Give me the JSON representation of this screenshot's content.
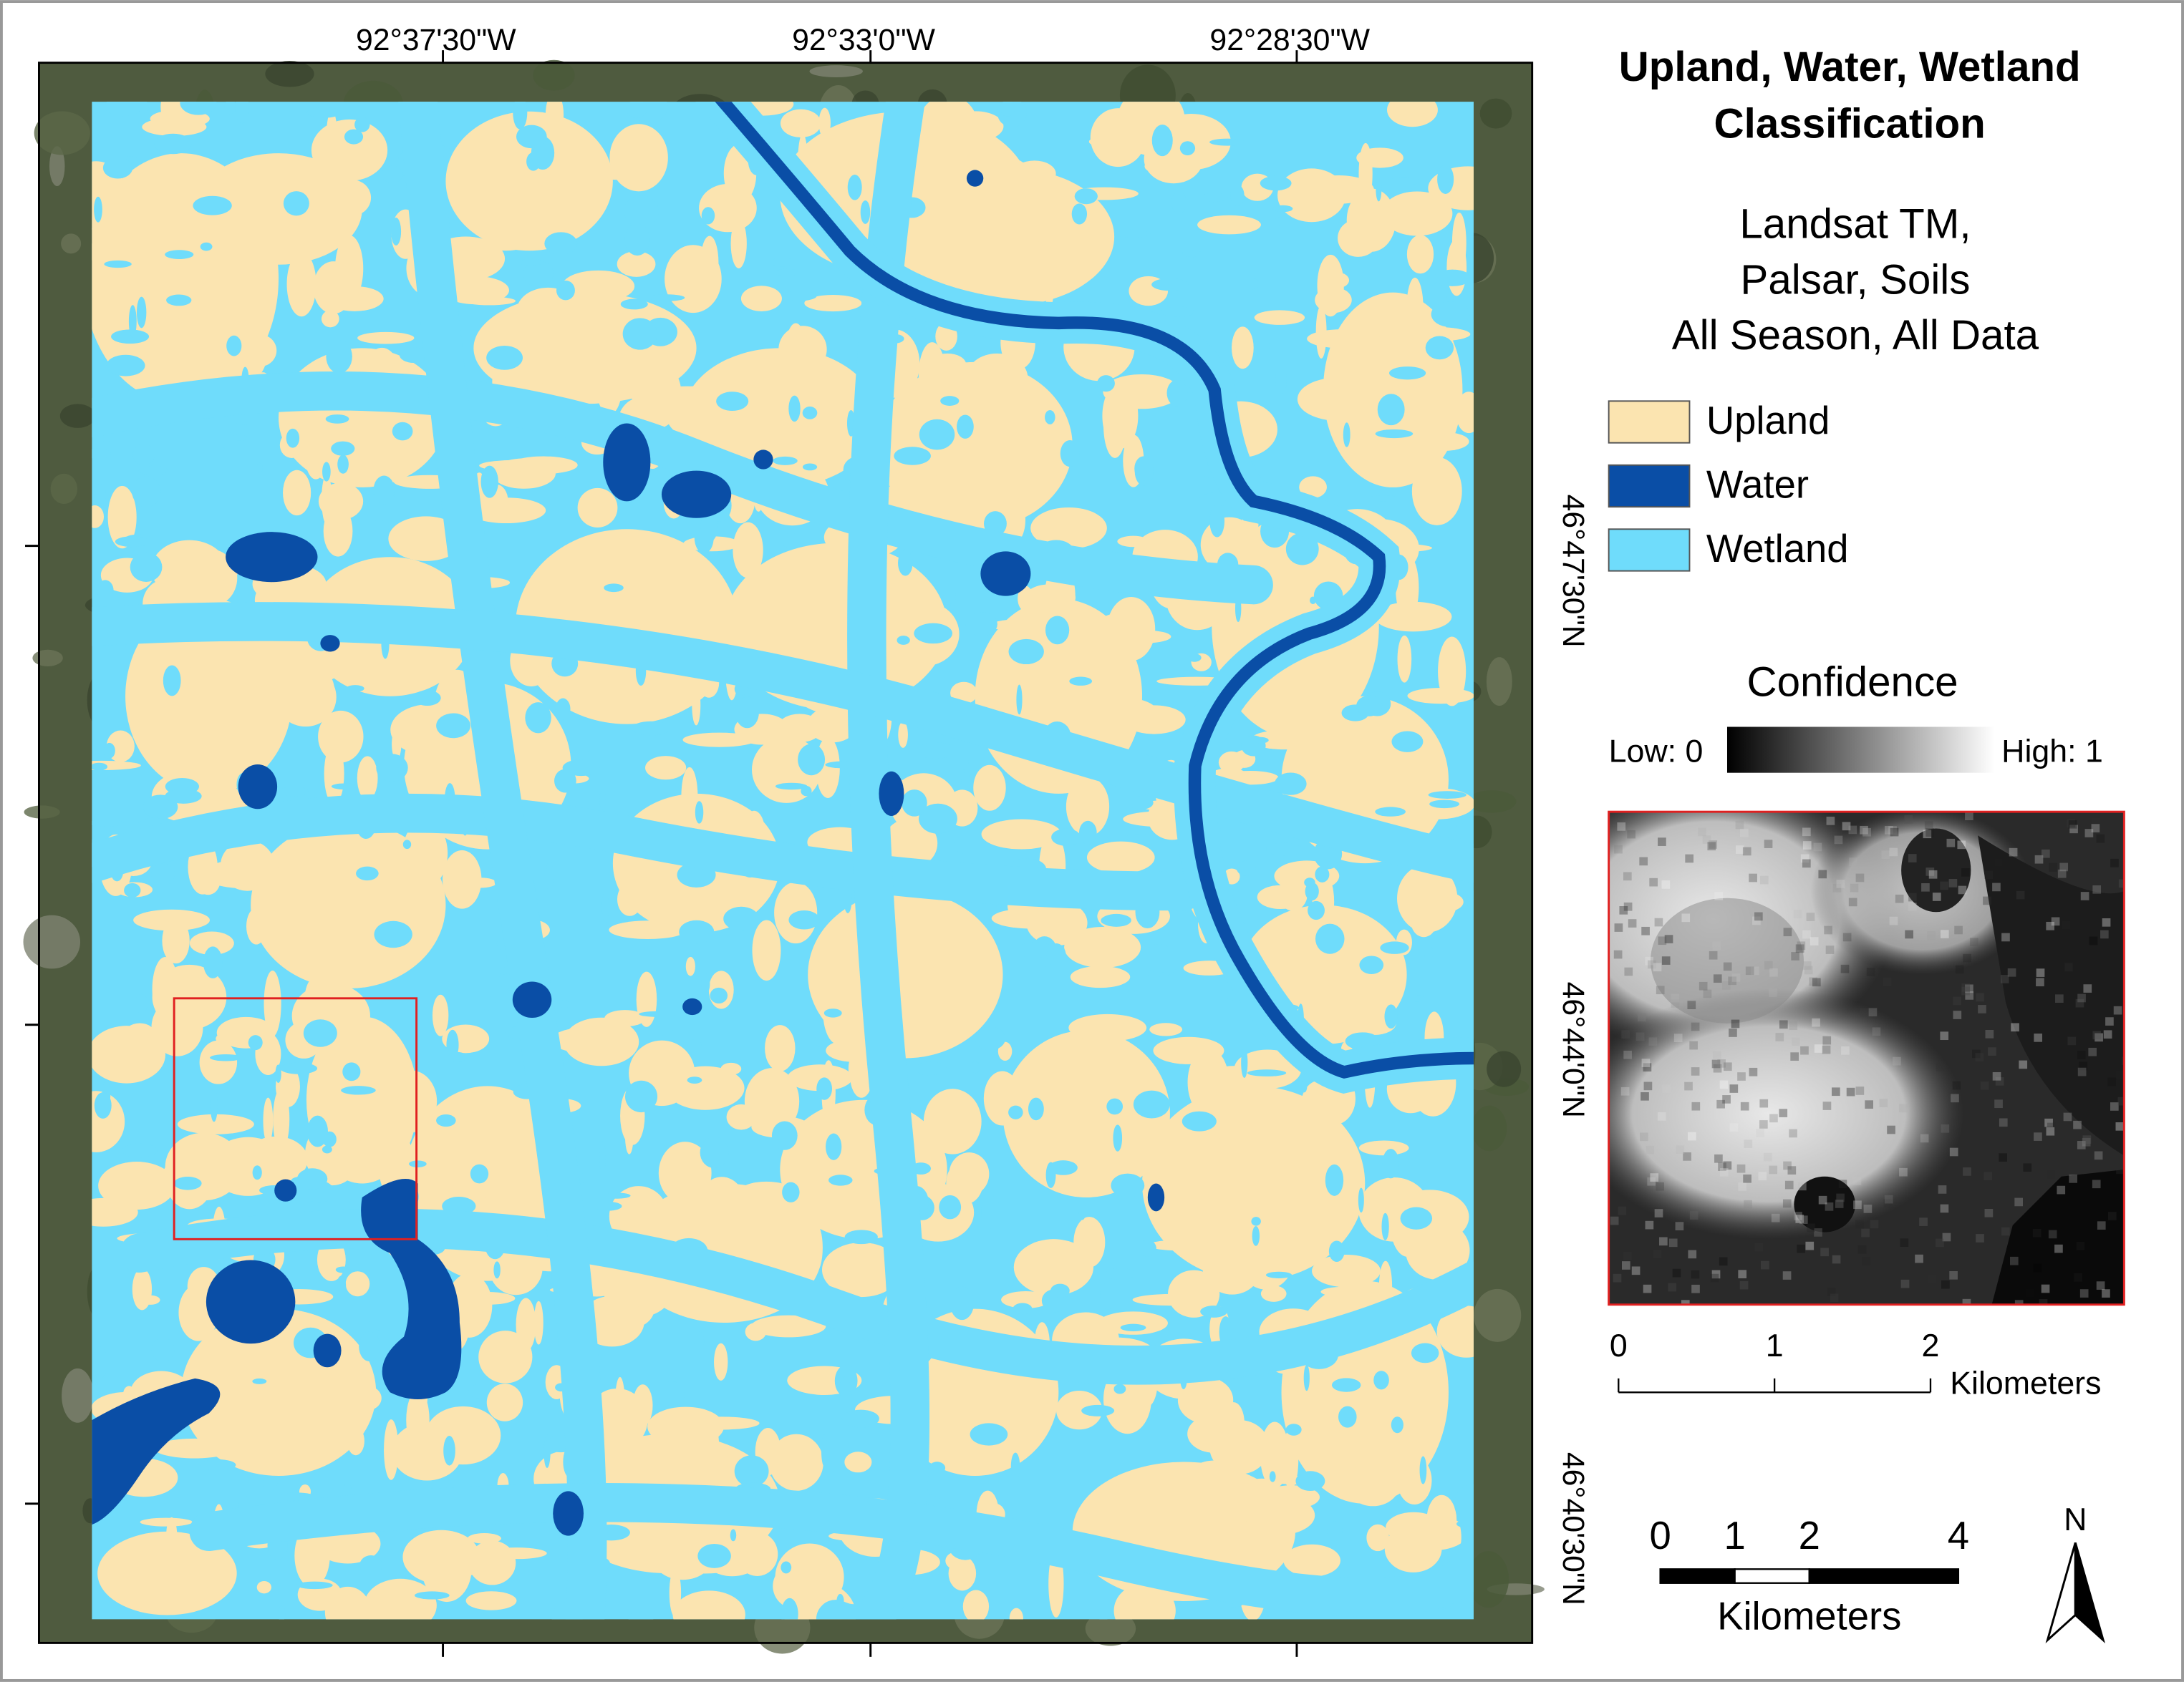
{
  "map": {
    "longitude_labels": [
      "92°37'30\"W",
      "92°33'0\"W",
      "92°28'30\"W"
    ],
    "latitude_labels": [
      "46°47'30\"N",
      "46°44'0\"N",
      "46°40'30\"N"
    ]
  },
  "legend": {
    "title": [
      "Upland, Water, Wetland",
      "Classification"
    ],
    "subtitle": [
      "Landsat TM,",
      "Palsar, Soils",
      "All Season, All Data"
    ],
    "items": [
      {
        "label": "Upland",
        "color": "#fbe4b0"
      },
      {
        "label": "Water",
        "color": "#0a4ea6"
      },
      {
        "label": "Wetland",
        "color": "#6fdcfb"
      }
    ]
  },
  "confidence": {
    "title": "Confidence",
    "low": "Low: 0",
    "high": "High: 1"
  },
  "inset_scale": {
    "ticks": [
      0,
      1,
      2
    ],
    "unit": "Kilometers"
  },
  "scale_bar": {
    "ticks": [
      0,
      1,
      2,
      4
    ],
    "unit": "Kilometers"
  },
  "north_arrow": "N"
}
